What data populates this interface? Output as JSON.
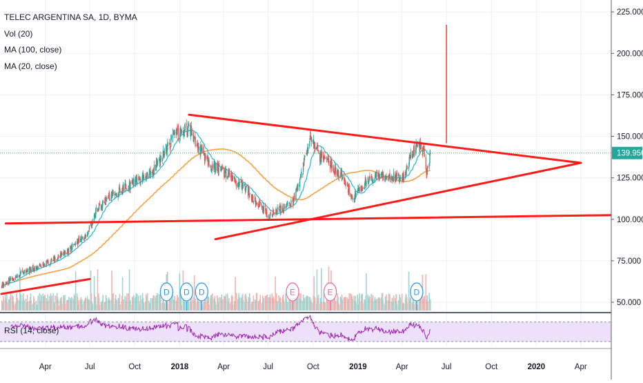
{
  "legend": {
    "symbol": "TELEC ARGENTINA SA, 1D, BYMA",
    "vol": "Vol (20)",
    "ma100": "MA (100, close)",
    "ma20": "MA (20, close)"
  },
  "rsi_label": "RSI (14, close)",
  "price_tag": "139.950",
  "colors": {
    "up": "#26a69a",
    "down": "#ef5350",
    "trendline": "#ff1a1a",
    "ma20": "#2bbbd8",
    "ma100": "#f7a042",
    "rsi": "#9c27b0",
    "rsi_band": "#ede0fb",
    "price_line": "#4caf50",
    "price_tag_bg": "#26a69a",
    "event_dividend": "#2196f3",
    "event_earnings": "#f06292"
  },
  "chart_data": {
    "type": "line",
    "subtype": "candlestick",
    "x_ticks": [
      "Apr",
      "Jul",
      "Oct",
      "2018",
      "Apr",
      "Jul",
      "Oct",
      "2019",
      "Apr",
      "Jul",
      "Oct",
      "2020",
      "Apr"
    ],
    "y_ticks": [
      "225.000",
      "200.000",
      "175.000",
      "150.000",
      "125.000",
      "100.000",
      "75.000",
      "50.000"
    ],
    "ylim": [
      45,
      228
    ],
    "x_start": "2017-01-01",
    "x_end": "2020-06-01",
    "last_price": 139.95,
    "price_waypoints": [
      [
        "2017-01-01",
        60
      ],
      [
        "2017-02-15",
        68
      ],
      [
        "2017-04-01",
        73
      ],
      [
        "2017-05-15",
        80
      ],
      [
        "2017-06-20",
        90
      ],
      [
        "2017-07-01",
        95
      ],
      [
        "2017-07-15",
        106
      ],
      [
        "2017-08-15",
        115
      ],
      [
        "2017-10-01",
        122
      ],
      [
        "2017-11-01",
        128
      ],
      [
        "2017-11-20",
        135
      ],
      [
        "2017-12-20",
        150
      ],
      [
        "2018-01-20",
        155
      ],
      [
        "2018-02-05",
        145
      ],
      [
        "2018-03-05",
        132
      ],
      [
        "2018-03-25",
        130
      ],
      [
        "2018-04-15",
        125
      ],
      [
        "2018-05-15",
        118
      ],
      [
        "2018-06-15",
        108
      ],
      [
        "2018-07-05",
        102
      ],
      [
        "2018-08-01",
        107
      ],
      [
        "2018-08-20",
        110
      ],
      [
        "2018-09-10",
        130
      ],
      [
        "2018-09-25",
        150
      ],
      [
        "2018-10-15",
        138
      ],
      [
        "2018-11-01",
        134
      ],
      [
        "2018-12-01",
        126
      ],
      [
        "2018-12-20",
        112
      ],
      [
        "2019-01-15",
        122
      ],
      [
        "2019-02-15",
        127
      ],
      [
        "2019-03-05",
        125
      ],
      [
        "2019-04-05",
        125
      ],
      [
        "2019-04-20",
        138
      ],
      [
        "2019-05-05",
        145
      ],
      [
        "2019-05-15",
        140
      ],
      [
        "2019-05-22",
        128
      ],
      [
        "2019-05-29",
        139.95
      ]
    ],
    "trendlines": [
      {
        "x1": "2017-01-01",
        "y1": 55,
        "x2": "2017-07-01",
        "y2": 64
      },
      {
        "x1": "2017-01-10",
        "y1": 97.5,
        "x2": "2020-06-01",
        "y2": 102.5
      },
      {
        "x1": "2018-01-20",
        "y1": 163,
        "x2": "2020-04-01",
        "y2": 134
      },
      {
        "x1": "2018-03-15",
        "y1": 88,
        "x2": "2020-04-01",
        "y2": 134
      },
      {
        "x1": "2019-07-01",
        "y1": 146,
        "x2": "2019-07-01",
        "y2": 217
      }
    ],
    "events": [
      {
        "date": "2017-12-05",
        "label": "D",
        "kind": "dividend"
      },
      {
        "date": "2018-01-15",
        "label": "D",
        "kind": "dividend"
      },
      {
        "date": "2018-02-15",
        "label": "D",
        "kind": "dividend"
      },
      {
        "date": "2018-08-20",
        "label": "E",
        "kind": "earnings"
      },
      {
        "date": "2018-11-05",
        "label": "E",
        "kind": "earnings"
      },
      {
        "date": "2019-05-01",
        "label": "D",
        "kind": "dividend"
      }
    ],
    "rsi_levels": [
      30,
      70
    ],
    "grid": true
  }
}
